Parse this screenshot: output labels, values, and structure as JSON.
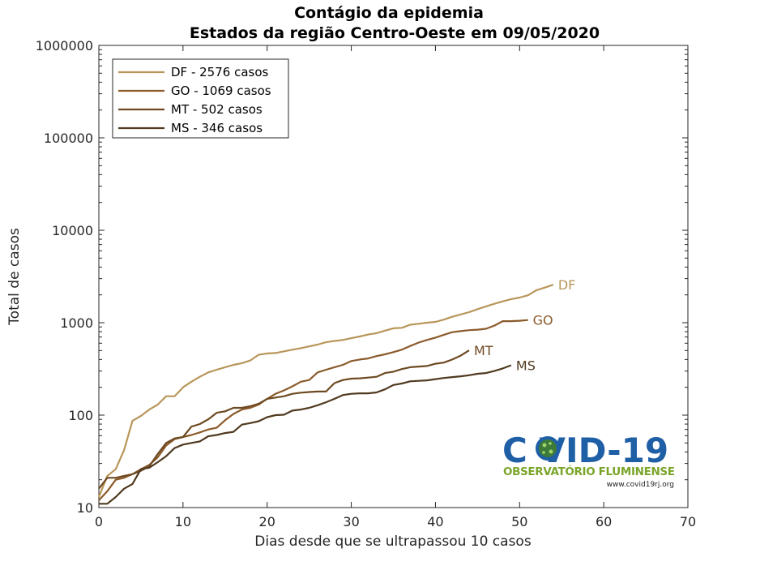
{
  "chart_data": {
    "type": "line",
    "title": "Contágio da epidemia",
    "subtitle": "Estados da região Centro-Oeste  em 09/05/2020",
    "xlabel": "Dias desde que se ultrapassou 10 casos",
    "ylabel": "Total de casos",
    "xlim": [
      0,
      70
    ],
    "ylim": [
      10,
      1000000
    ],
    "yscale": "log",
    "grid": false,
    "legend_position": "top-left",
    "xticks": [
      "0",
      "10",
      "20",
      "30",
      "40",
      "50",
      "60",
      "70"
    ],
    "yticks": [
      "10",
      "100",
      "1000",
      "10000",
      "100000",
      "1000000"
    ],
    "series": [
      {
        "name": "DF - 2576 casos",
        "end_label": "DF",
        "color": "#b8965a",
        "x": [
          0,
          1,
          2,
          3,
          4,
          5,
          6,
          7,
          8,
          9,
          10,
          11,
          12,
          13,
          14,
          15,
          16,
          17,
          18,
          19,
          20,
          21,
          22,
          23,
          24,
          25,
          26,
          27,
          28,
          29,
          30,
          31,
          32,
          33,
          34,
          35,
          36,
          37,
          38,
          39,
          40,
          41,
          42,
          43,
          44,
          45,
          46,
          47,
          48,
          49,
          50,
          51,
          52,
          53,
          54
        ],
        "y": [
          13,
          22,
          26,
          42,
          87,
          98,
          115,
          130,
          160,
          160,
          200,
          230,
          260,
          290,
          310,
          330,
          350,
          365,
          390,
          450,
          465,
          470,
          490,
          510,
          530,
          555,
          580,
          615,
          635,
          650,
          680,
          710,
          745,
          770,
          820,
          870,
          880,
          950,
          975,
          1000,
          1020,
          1080,
          1160,
          1230,
          1300,
          1400,
          1500,
          1600,
          1700,
          1800,
          1870,
          1980,
          2250,
          2400,
          2576
        ]
      },
      {
        "name": "GO - 1069 casos",
        "end_label": "GO",
        "color": "#8b5a2b",
        "x": [
          0,
          1,
          2,
          3,
          4,
          5,
          6,
          7,
          8,
          9,
          10,
          11,
          12,
          13,
          14,
          15,
          16,
          17,
          18,
          19,
          20,
          21,
          22,
          23,
          24,
          25,
          26,
          27,
          28,
          29,
          30,
          31,
          32,
          33,
          34,
          35,
          36,
          37,
          38,
          39,
          40,
          41,
          42,
          43,
          44,
          45,
          46,
          47,
          48,
          49,
          50,
          51
        ],
        "y": [
          12,
          15,
          20,
          21,
          23,
          26,
          29,
          35,
          47,
          55,
          58,
          61,
          65,
          70,
          73,
          88,
          103,
          115,
          120,
          130,
          150,
          170,
          185,
          205,
          230,
          240,
          290,
          310,
          330,
          350,
          385,
          400,
          410,
          435,
          455,
          480,
          510,
          560,
          610,
          650,
          690,
          740,
          790,
          810,
          830,
          840,
          860,
          930,
          1040,
          1040,
          1050,
          1069
        ]
      },
      {
        "name": "MT - 502 casos",
        "end_label": "MT",
        "color": "#6e4a22",
        "x": [
          0,
          1,
          2,
          3,
          4,
          5,
          6,
          7,
          8,
          9,
          10,
          11,
          12,
          13,
          14,
          15,
          16,
          17,
          18,
          19,
          20,
          21,
          22,
          23,
          24,
          25,
          26,
          27,
          28,
          29,
          30,
          31,
          32,
          33,
          34,
          35,
          36,
          37,
          38,
          39,
          40,
          41,
          42,
          43,
          44
        ],
        "y": [
          16,
          21,
          21,
          22,
          23,
          25,
          28,
          38,
          50,
          56,
          58,
          75,
          80,
          90,
          106,
          110,
          120,
          120,
          125,
          133,
          150,
          155,
          160,
          170,
          175,
          178,
          180,
          180,
          222,
          240,
          248,
          250,
          255,
          260,
          285,
          295,
          315,
          330,
          335,
          340,
          360,
          370,
          400,
          440,
          502
        ]
      },
      {
        "name": "MS - 346 casos",
        "end_label": "MS",
        "color": "#503a20",
        "x": [
          0,
          1,
          2,
          3,
          4,
          5,
          6,
          7,
          8,
          9,
          10,
          11,
          12,
          13,
          14,
          15,
          16,
          17,
          18,
          19,
          20,
          21,
          22,
          23,
          24,
          25,
          26,
          27,
          28,
          29,
          30,
          31,
          32,
          33,
          34,
          35,
          36,
          37,
          38,
          39,
          40,
          41,
          42,
          43,
          44,
          45,
          46,
          47,
          48,
          49
        ],
        "y": [
          11,
          11,
          13,
          16,
          18,
          26,
          27,
          31,
          36,
          44,
          48,
          50,
          52,
          59,
          61,
          64,
          66,
          79,
          82,
          86,
          95,
          100,
          101,
          112,
          115,
          120,
          128,
          138,
          150,
          165,
          170,
          172,
          172,
          176,
          190,
          212,
          220,
          232,
          235,
          238,
          245,
          252,
          258,
          263,
          270,
          280,
          285,
          300,
          320,
          346
        ]
      }
    ]
  },
  "logo": {
    "main": "C  VID-19",
    "sub": "OBSERVATÓRIO FLUMINENSE",
    "url": "www.covid19rj.org"
  }
}
